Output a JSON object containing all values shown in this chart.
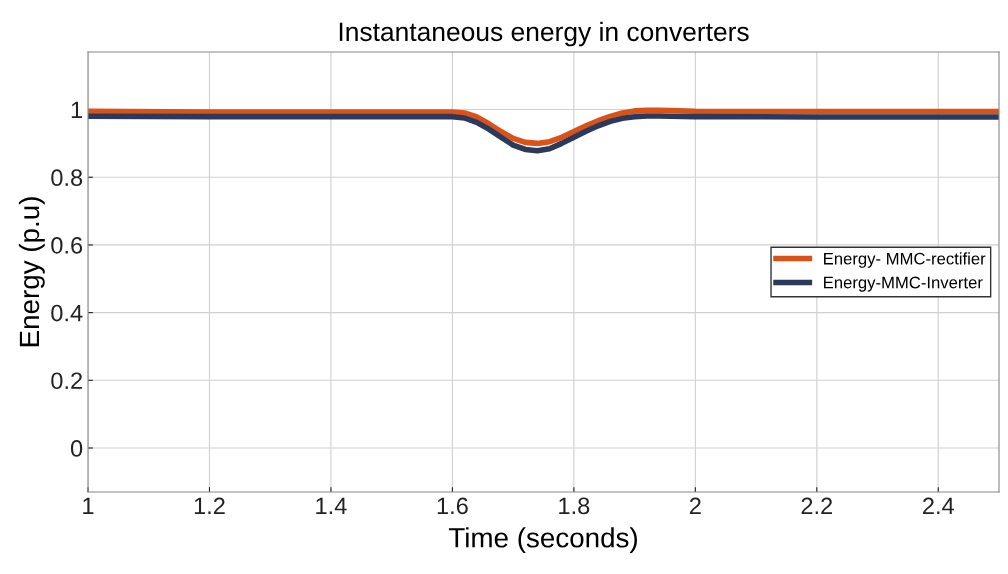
{
  "chart_data": {
    "type": "line",
    "title": "Instantaneous energy in converters",
    "xlabel": "Time (seconds)",
    "ylabel": "Energy (p.u)",
    "xlim": [
      1,
      2.5
    ],
    "ylim": [
      -0.13,
      1.17
    ],
    "xticks": [
      1,
      1.2,
      1.4,
      1.6,
      1.8,
      2,
      2.2,
      2.4
    ],
    "yticks": [
      0,
      0.2,
      0.4,
      0.6,
      0.8,
      1
    ],
    "grid": true,
    "legend": "right",
    "line_style": "solid",
    "marker": "none",
    "series": [
      {
        "name": "Energy- MMC-rectifier",
        "color": "#d95319",
        "x": [
          1,
          1.2,
          1.4,
          1.6,
          1.62,
          1.64,
          1.66,
          1.68,
          1.7,
          1.72,
          1.74,
          1.76,
          1.78,
          1.8,
          1.82,
          1.84,
          1.86,
          1.88,
          1.9,
          1.92,
          1.94,
          1.96,
          2,
          2.2,
          2.5
        ],
        "values": [
          0.995,
          0.993,
          0.993,
          0.993,
          0.99,
          0.978,
          0.958,
          0.935,
          0.915,
          0.903,
          0.9,
          0.905,
          0.918,
          0.935,
          0.952,
          0.967,
          0.98,
          0.99,
          0.996,
          0.998,
          0.998,
          0.997,
          0.995,
          0.994,
          0.994
        ]
      },
      {
        "name": "Energy-MMC-Inverter",
        "color": "#2b3a5c",
        "x": [
          1,
          1.2,
          1.4,
          1.6,
          1.62,
          1.64,
          1.66,
          1.68,
          1.7,
          1.72,
          1.74,
          1.76,
          1.78,
          1.8,
          1.82,
          1.84,
          1.86,
          1.88,
          1.9,
          1.92,
          1.94,
          1.96,
          2,
          2.2,
          2.5
        ],
        "values": [
          0.98,
          0.979,
          0.979,
          0.979,
          0.975,
          0.962,
          0.942,
          0.918,
          0.895,
          0.882,
          0.878,
          0.884,
          0.9,
          0.918,
          0.936,
          0.952,
          0.965,
          0.974,
          0.979,
          0.981,
          0.981,
          0.98,
          0.979,
          0.978,
          0.978
        ]
      }
    ]
  }
}
